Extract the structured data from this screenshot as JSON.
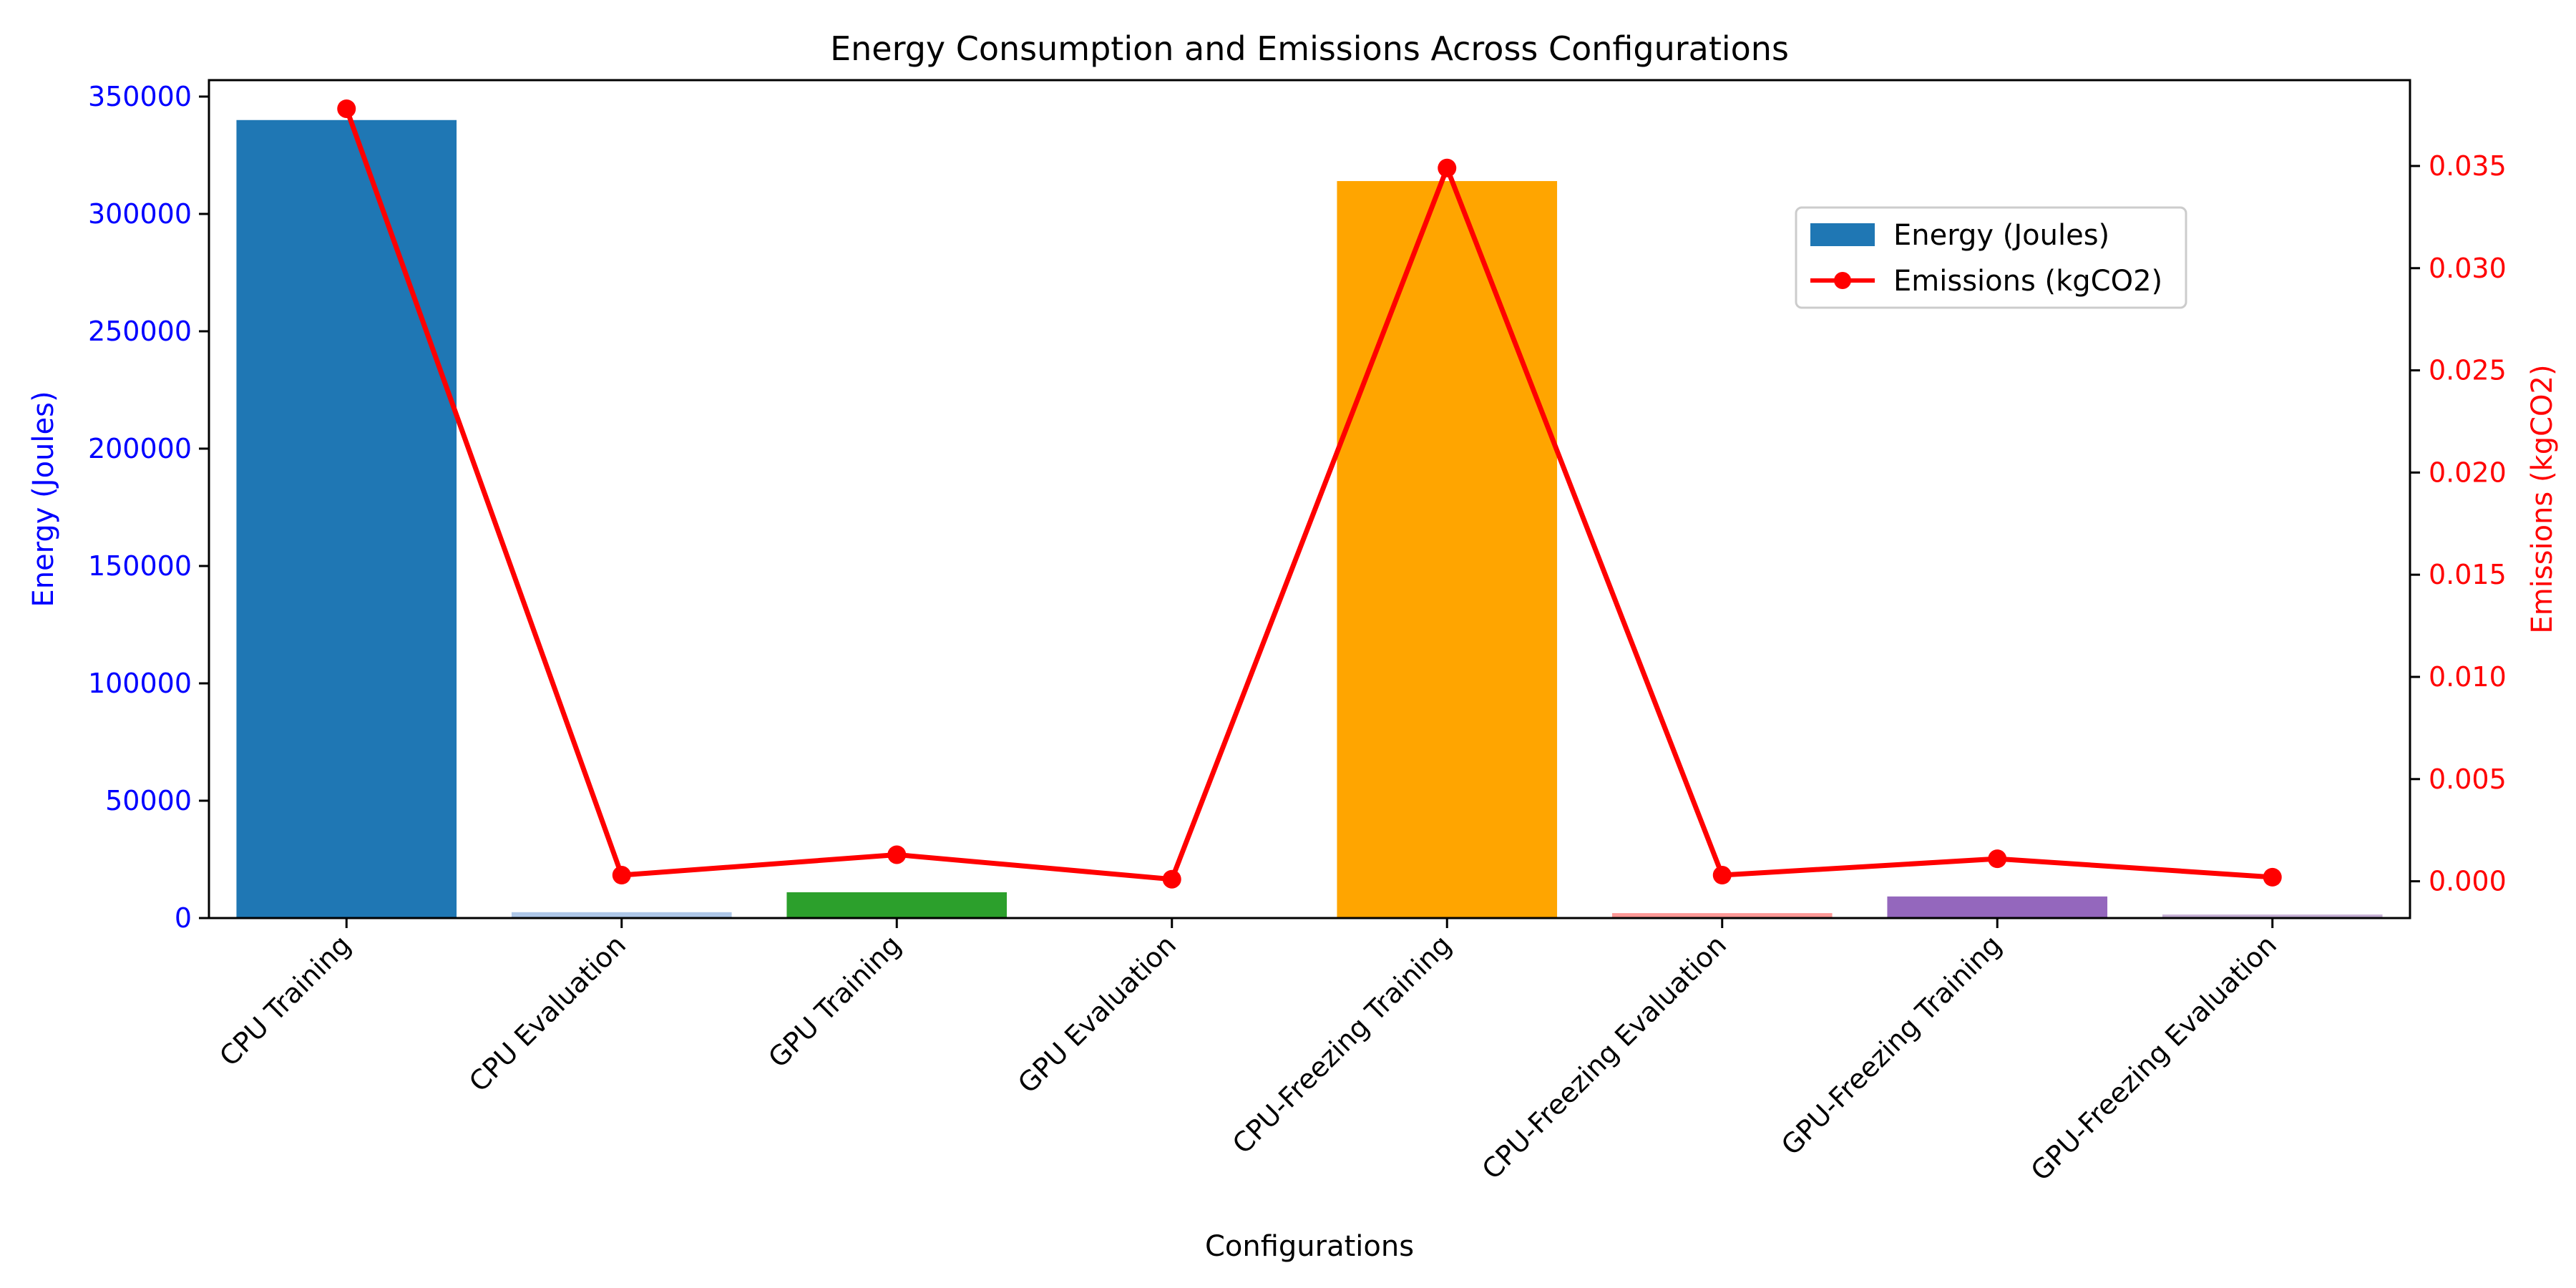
{
  "chart_data": {
    "type": "bar",
    "title": "Energy Consumption and Emissions Across Configurations",
    "xlabel": "Configurations",
    "ylabel_left": "Energy (Joules)",
    "ylabel_right": "Emissions (kgCO2)",
    "ylim_left": [
      0,
      357000
    ],
    "ylim_right": [
      -0.0018,
      0.0392
    ],
    "yticks_left": [
      "0",
      "50000",
      "100000",
      "150000",
      "200000",
      "250000",
      "300000",
      "350000"
    ],
    "yticks_right": [
      "0.000",
      "0.005",
      "0.010",
      "0.015",
      "0.020",
      "0.025",
      "0.030",
      "0.035"
    ],
    "categories": [
      "CPU Training",
      "CPU Evaluation",
      "GPU Training",
      "GPU Evaluation",
      "CPU-Freezing Training",
      "CPU-Freezing Evaluation",
      "GPU-Freezing Training",
      "GPU-Freezing Evaluation"
    ],
    "series": [
      {
        "name": "Energy (Joules)",
        "axis": "left",
        "kind": "bar",
        "values": [
          340000,
          2500,
          11000,
          300,
          314000,
          2100,
          9200,
          1500
        ],
        "colors": [
          "#1f77b4",
          "#aec7e8",
          "#2ca02c",
          "#98df8a",
          "#ffa500",
          "#ff9896",
          "#9467bd",
          "#c5b0d5"
        ]
      },
      {
        "name": "Emissions (kgCO2)",
        "axis": "right",
        "kind": "line",
        "color": "#ff0000",
        "values": [
          0.0378,
          0.0003,
          0.0013,
          0.0001,
          0.0349,
          0.0003,
          0.0011,
          0.0002
        ]
      }
    ],
    "axis_colors": {
      "left": "#0000ff",
      "right": "#ff0000"
    },
    "legend_position": "upper-right",
    "grid": false
  }
}
